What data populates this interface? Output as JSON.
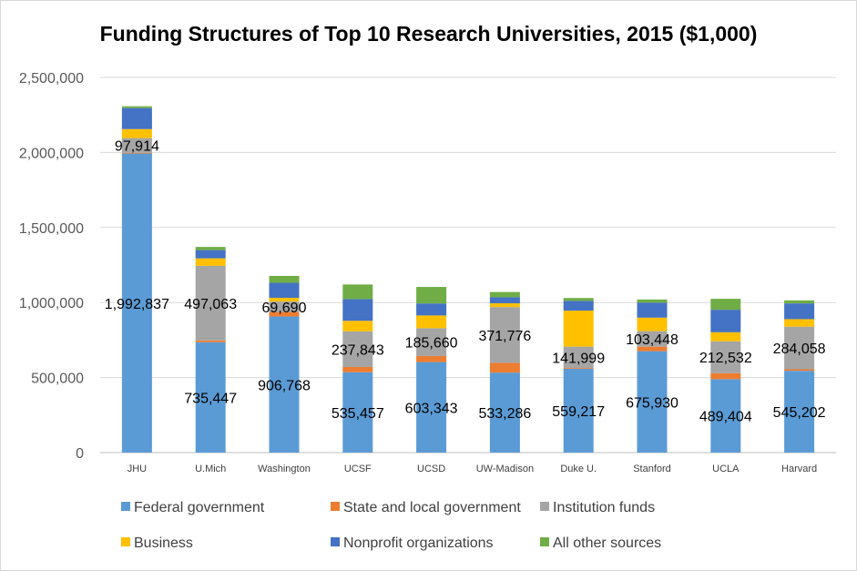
{
  "chart_data": {
    "type": "bar",
    "stacked": true,
    "title": "Funding Structures of Top 10 Research Universities, 2015 ($1,000)",
    "ylim": [
      0,
      2500000
    ],
    "yticks": [
      0,
      500000,
      1000000,
      1500000,
      2000000,
      2500000
    ],
    "ytick_labels": [
      "0",
      "500,000",
      "1,000,000",
      "1,500,000",
      "2,000,000",
      "2,500,000"
    ],
    "grid": true,
    "legend_position": "bottom",
    "categories": [
      "JHU",
      "U.Mich",
      "Washington",
      "UCSF",
      "UCSD",
      "UW-Madison",
      "Duke U.",
      "Stanford",
      "UCLA",
      "Harvard"
    ],
    "series": [
      {
        "name": "Federal government",
        "color": "#5b9bd5",
        "values": [
          1992837,
          735447,
          906768,
          535457,
          603343,
          533286,
          559217,
          675930,
          489404,
          545202
        ],
        "labels": [
          "1,992,837",
          "735,447",
          "906,768",
          "535,457",
          "603,343",
          "533,286",
          "559,217",
          "675,930",
          "489,404",
          "545,202"
        ]
      },
      {
        "name": "State and local government",
        "color": "#ed7d31",
        "values": [
          5000,
          12000,
          30000,
          35000,
          40000,
          65000,
          5000,
          30000,
          40000,
          10000
        ],
        "labels": null
      },
      {
        "name": "Institution funds",
        "color": "#a5a5a5",
        "values": [
          97914,
          497063,
          69690,
          237843,
          185660,
          371776,
          141999,
          103448,
          212532,
          284058
        ],
        "labels": [
          "97,914",
          "497,063",
          "69,690",
          "237,843",
          "185,660",
          "371,776",
          "141,999",
          "103,448",
          "212,532",
          "284,058"
        ]
      },
      {
        "name": "Business",
        "color": "#ffc000",
        "values": [
          60000,
          50000,
          25000,
          70000,
          85000,
          25000,
          240000,
          90000,
          60000,
          50000
        ],
        "labels": null
      },
      {
        "name": "Nonprofit organizations",
        "color": "#4472c4",
        "values": [
          140000,
          55000,
          100000,
          145000,
          80000,
          40000,
          65000,
          100000,
          150000,
          105000
        ],
        "labels": null
      },
      {
        "name": "All other sources",
        "color": "#70ad47",
        "values": [
          12000,
          21000,
          46000,
          97000,
          110000,
          35000,
          19000,
          21000,
          73000,
          20000
        ],
        "labels": null
      }
    ]
  }
}
